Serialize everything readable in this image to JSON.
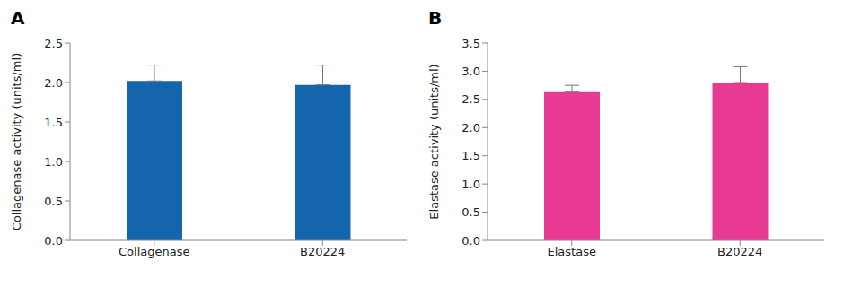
{
  "chart_data": [
    {
      "type": "bar",
      "title": "A",
      "ylabel": "Collagenase activity (units/ml)",
      "categories": [
        "Collagenase",
        "B20224"
      ],
      "values": [
        2.02,
        1.97
      ],
      "errors": [
        0.2,
        0.25
      ],
      "color": "#1565ad",
      "ylim": [
        0,
        2.5
      ],
      "yticks": [
        {
          "value": 0,
          "label": "0.0"
        },
        0.5,
        {
          "value": 1,
          "label": "1.0"
        },
        1.5,
        {
          "value": 2,
          "label": "2.0"
        },
        2.5
      ],
      "grid": false
    },
    {
      "type": "bar",
      "title": "B",
      "ylabel": "Elastase activity (units/ml)",
      "categories": [
        "Elastase",
        "B20224"
      ],
      "values": [
        2.63,
        2.8
      ],
      "errors": [
        0.12,
        0.28
      ],
      "color": "#e83a92",
      "ylim": [
        0,
        3.5
      ],
      "yticks": [
        {
          "value": 0,
          "label": "0.0"
        },
        0.5,
        {
          "value": 1,
          "label": "1.0"
        },
        1.5,
        {
          "value": 2,
          "label": "2.0"
        },
        2.5,
        {
          "value": 3,
          "label": "3.0"
        },
        3.5
      ],
      "grid": false
    }
  ]
}
